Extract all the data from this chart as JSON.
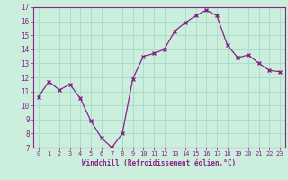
{
  "x": [
    0,
    1,
    2,
    3,
    4,
    5,
    6,
    7,
    8,
    9,
    10,
    11,
    12,
    13,
    14,
    15,
    16,
    17,
    18,
    19,
    20,
    21,
    22,
    23
  ],
  "y": [
    10.6,
    11.7,
    11.1,
    11.5,
    10.5,
    8.9,
    7.7,
    7.0,
    8.0,
    11.9,
    13.5,
    13.7,
    14.0,
    15.3,
    15.9,
    16.4,
    16.8,
    16.4,
    14.3,
    13.4,
    13.6,
    13.0,
    12.5,
    12.4
  ],
  "line_color": "#882288",
  "marker": "x",
  "marker_color": "#882288",
  "bg_color": "#CCEEDD",
  "grid_color": "#AADDCC",
  "xlabel": "Windchill (Refroidissement éolien,°C)",
  "xlabel_color": "#882288",
  "tick_color": "#882288",
  "spine_color": "#882288",
  "ylim": [
    7,
    17
  ],
  "xlim": [
    -0.5,
    23.5
  ],
  "yticks": [
    7,
    8,
    9,
    10,
    11,
    12,
    13,
    14,
    15,
    16,
    17
  ],
  "xticks": [
    0,
    1,
    2,
    3,
    4,
    5,
    6,
    7,
    8,
    9,
    10,
    11,
    12,
    13,
    14,
    15,
    16,
    17,
    18,
    19,
    20,
    21,
    22,
    23
  ]
}
